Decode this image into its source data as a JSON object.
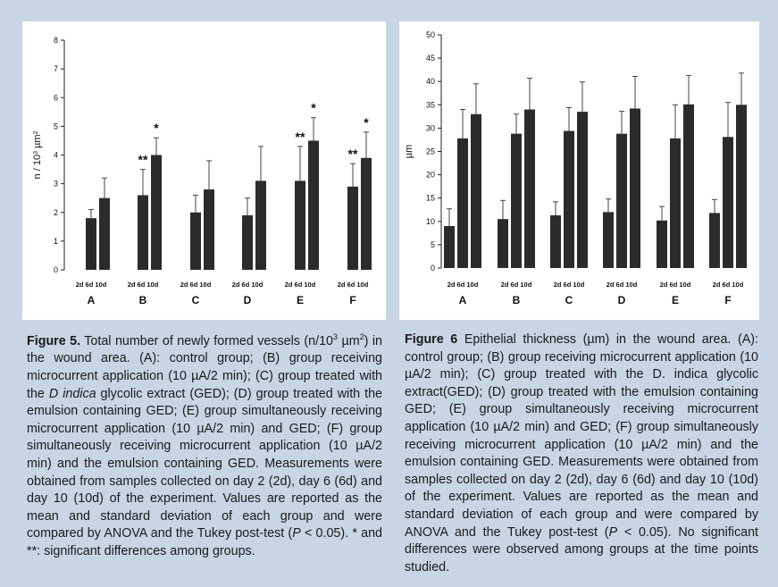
{
  "chart_data": [
    {
      "type": "bar",
      "title": "",
      "xlabel": "",
      "ylabel_parts": [
        "n / 10",
        "3",
        " µm",
        "2"
      ],
      "ylim": [
        0,
        8
      ],
      "yticks": [
        0,
        1,
        2,
        3,
        4,
        5,
        6,
        7,
        8
      ],
      "groups": [
        "A",
        "B",
        "C",
        "D",
        "E",
        "F"
      ],
      "sub_label": "2d 6d 10d",
      "series": [
        {
          "name": "2d",
          "values": [
            null,
            null,
            null,
            null,
            null,
            null
          ]
        },
        {
          "name": "6d",
          "values": [
            1.8,
            2.6,
            2.0,
            1.9,
            3.1,
            2.9
          ]
        },
        {
          "name": "10d",
          "values": [
            2.5,
            4.0,
            2.8,
            3.1,
            4.5,
            3.9
          ]
        }
      ],
      "errors": [
        {
          "name": "6d",
          "values": [
            0.3,
            0.9,
            0.6,
            0.6,
            1.2,
            0.8
          ]
        },
        {
          "name": "10d",
          "values": [
            0.7,
            0.6,
            1.0,
            1.2,
            0.8,
            0.9
          ]
        }
      ],
      "annotations": [
        {
          "group": "B",
          "series": "6d",
          "text": "**"
        },
        {
          "group": "B",
          "series": "10d",
          "text": "*"
        },
        {
          "group": "E",
          "series": "6d",
          "text": "**"
        },
        {
          "group": "E",
          "series": "10d",
          "text": "*"
        },
        {
          "group": "F",
          "series": "6d",
          "text": "**"
        },
        {
          "group": "F",
          "series": "10d",
          "text": "*"
        }
      ]
    },
    {
      "type": "bar",
      "title": "",
      "xlabel": "",
      "ylabel": "µm",
      "ylim": [
        0,
        50
      ],
      "yticks": [
        0,
        5,
        10,
        15,
        20,
        25,
        30,
        35,
        40,
        45,
        50
      ],
      "groups": [
        "A",
        "B",
        "C",
        "D",
        "E",
        "F"
      ],
      "sub_label": "2d 6d 10d",
      "series": [
        {
          "name": "2d",
          "values": [
            9.0,
            10.5,
            11.3,
            12.0,
            10.2,
            11.8
          ]
        },
        {
          "name": "6d",
          "values": [
            27.8,
            28.8,
            29.4,
            28.8,
            27.8,
            28.1
          ]
        },
        {
          "name": "10d",
          "values": [
            33.0,
            34.0,
            33.5,
            34.2,
            35.1,
            35.0
          ]
        }
      ],
      "errors": [
        {
          "name": "2d",
          "values": [
            3.7,
            4.0,
            2.9,
            2.8,
            3.0,
            2.9
          ]
        },
        {
          "name": "6d",
          "values": [
            6.2,
            4.2,
            5.0,
            4.8,
            7.2,
            7.4
          ]
        },
        {
          "name": "10d",
          "values": [
            6.5,
            6.7,
            6.4,
            6.9,
            6.2,
            6.8
          ]
        }
      ],
      "annotations": []
    }
  ],
  "captions": {
    "fig5": {
      "label": "Figure 5.",
      "p1": " Total number of newly formed vessels (n/10",
      "p1_sup": "3",
      "p2": " µm",
      "p2_sup": "2",
      "p3": ") in the wound area. (A): control group; (B) group receiving microcurrent application (10 µA/2 min); (C) group treated with the ",
      "italic1": "D indica",
      "p4": " glycolic extract (GED); (D) group treated with the emulsion containing GED; (E) group simultaneously receiving microcurrent application (10 µA/2 min) and GED; (F) group simultaneously receiving microcurrent application (10 µA/2 min) and the emulsion containing GED. Measurements were obtained from samples collected on day 2 (2d), day 6 (6d) and day 10 (10d) of the experiment. Values are reported as the mean and standard deviation of each group and were compared by ANOVA and the Tukey post-test (",
      "italic2": "P",
      "p5": " < 0.05). * and **: significant differences among groups."
    },
    "fig6": {
      "label": "Figure 6",
      "p1": " Epithelial thickness (µm) in the wound area. (A): control group; (B) group receiving microcurrent application (10 µA/2 min); (C) group treated with the D. indica glycolic extract(GED); (D) group treated with the emulsion containing GED; (E) group simultaneously receiving microcurrent application (10 µA/2 min) and GED; (F) group simultaneously receiving microcurrent application (10 µA/2 min) and the emulsion containing GED. Measurements were obtained from samples collected on day 2 (2d), day 6 (6d) and day 10 (10d) of the experiment. Values are reported as the mean and standard deviation of each group and were compared by ANOVA and the Tukey post-test (",
      "italic1": "P",
      "p2": " < 0.05). No significant differences were observed among groups at the time points studied."
    }
  },
  "colors": {
    "background": "#c8d5e4",
    "panel": "#ffffff",
    "bar": "#2b2b2b"
  }
}
